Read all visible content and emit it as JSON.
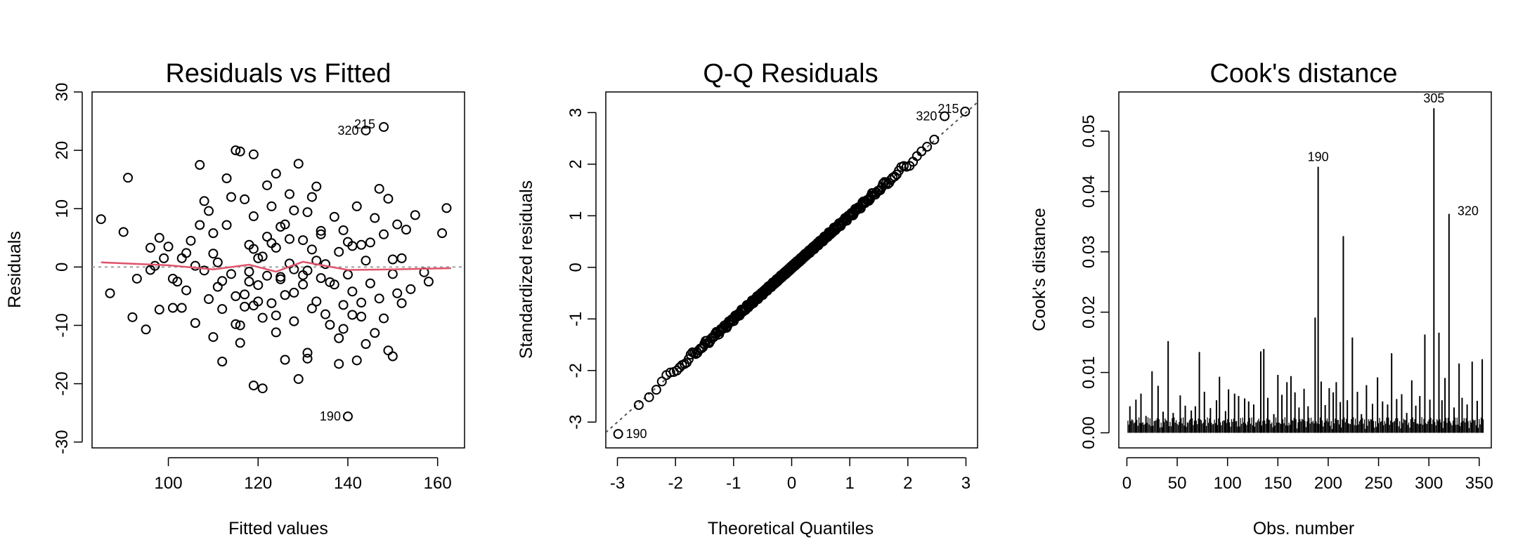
{
  "colors": {
    "loess": "#df536b",
    "reference": "#9e9e9e",
    "ink": "#000000"
  },
  "chart_data": [
    {
      "type": "scatter",
      "title": "Residuals vs Fitted",
      "xlabel": "Fitted values",
      "ylabel": "Residuals",
      "xlim": [
        83,
        166
      ],
      "ylim": [
        -31,
        30
      ],
      "xticks": [
        "100",
        "120",
        "140",
        "160"
      ],
      "yticks": [
        "-30",
        "-20",
        "-10",
        "0",
        "10",
        "20",
        "30"
      ],
      "points": [
        [
          85,
          8.2
        ],
        [
          87,
          -4.5
        ],
        [
          90,
          6
        ],
        [
          91,
          15.3
        ],
        [
          92,
          -8.6
        ],
        [
          93,
          -2
        ],
        [
          95,
          -10.7
        ],
        [
          96,
          3.3
        ],
        [
          96,
          -0.5
        ],
        [
          97,
          0.2
        ],
        [
          98,
          5
        ],
        [
          98,
          -7.3
        ],
        [
          99,
          1.5
        ],
        [
          100,
          3.5
        ],
        [
          101,
          -2
        ],
        [
          101,
          -7
        ],
        [
          102,
          -2.5
        ],
        [
          103,
          1.5
        ],
        [
          103,
          -7
        ],
        [
          104,
          -4
        ],
        [
          105,
          4.5
        ],
        [
          106,
          -9.6
        ],
        [
          107,
          7.2
        ],
        [
          107,
          17.5
        ],
        [
          108,
          11.3
        ],
        [
          108,
          -0.6
        ],
        [
          109,
          -5.5
        ],
        [
          110,
          2.3
        ],
        [
          110,
          -12
        ],
        [
          110,
          5.8
        ],
        [
          111,
          -3.4
        ],
        [
          111,
          0.8
        ],
        [
          112,
          -16.2
        ],
        [
          112,
          -7.2
        ],
        [
          113,
          15.2
        ],
        [
          113,
          7.2
        ],
        [
          114,
          12
        ],
        [
          115,
          20
        ],
        [
          115,
          -5
        ],
        [
          116,
          19.8
        ],
        [
          116,
          -13
        ],
        [
          116,
          -10
        ],
        [
          117,
          11.6
        ],
        [
          117,
          -4.7
        ],
        [
          118,
          3.8
        ],
        [
          118,
          -2.5
        ],
        [
          119,
          19.3
        ],
        [
          119,
          -20.3
        ],
        [
          119,
          -6.6
        ],
        [
          119,
          8.7
        ],
        [
          120,
          1.5
        ],
        [
          120,
          -3.1
        ],
        [
          121,
          -20.8
        ],
        [
          121,
          -8.7
        ],
        [
          122,
          5.2
        ],
        [
          122,
          14
        ],
        [
          122,
          -1.5
        ],
        [
          123,
          -6.2
        ],
        [
          123,
          10.4
        ],
        [
          124,
          16
        ],
        [
          124,
          3.3
        ],
        [
          124,
          -11.2
        ],
        [
          125,
          -1.7
        ],
        [
          126,
          -15.9
        ],
        [
          126,
          7.3
        ],
        [
          126,
          -4.8
        ],
        [
          127,
          4.8
        ],
        [
          127,
          12.5
        ],
        [
          128,
          -9.3
        ],
        [
          128,
          -0.4
        ],
        [
          129,
          -19.2
        ],
        [
          129,
          17.7
        ],
        [
          130,
          4.6
        ],
        [
          130,
          -3
        ],
        [
          131,
          9.4
        ],
        [
          131,
          -14.7
        ],
        [
          131,
          -15.7
        ],
        [
          132,
          12
        ],
        [
          132,
          3
        ],
        [
          133,
          -5.9
        ],
        [
          133,
          13.8
        ],
        [
          134,
          6.2
        ],
        [
          134,
          -1.9
        ],
        [
          135,
          -8.1
        ],
        [
          135,
          0.5
        ],
        [
          136,
          -9.9
        ],
        [
          137,
          8.6
        ],
        [
          137,
          -3
        ],
        [
          138,
          -16.6
        ],
        [
          138,
          -12.2
        ],
        [
          139,
          -6.5
        ],
        [
          139,
          6.3
        ],
        [
          140,
          4.3
        ],
        [
          140,
          -1.3
        ],
        [
          141,
          -8.2
        ],
        [
          141,
          3.6
        ],
        [
          142,
          10.4
        ],
        [
          142,
          -16
        ],
        [
          143,
          -6.1
        ],
        [
          144,
          1.1
        ],
        [
          144,
          -13.2
        ],
        [
          145,
          -2.8
        ],
        [
          146,
          8.4
        ],
        [
          146,
          -11.3
        ],
        [
          147,
          13.4
        ],
        [
          148,
          -8.8
        ],
        [
          149,
          11.7
        ],
        [
          149,
          -14.3
        ],
        [
          150,
          -1.2
        ],
        [
          150,
          -15.3
        ],
        [
          151,
          7.3
        ],
        [
          151,
          -4.5
        ],
        [
          152,
          1.5
        ],
        [
          152,
          -6.2
        ],
        [
          153,
          6.4
        ],
        [
          154,
          -3.8
        ],
        [
          155,
          8.9
        ],
        [
          157,
          -0.9
        ],
        [
          158,
          -2.5
        ],
        [
          161,
          5.8
        ],
        [
          162,
          10.1
        ],
        [
          106,
          0.2
        ],
        [
          112,
          -2.4
        ],
        [
          118,
          -0.8
        ],
        [
          121,
          1.8
        ],
        [
          125,
          -2.1
        ],
        [
          127,
          0.6
        ],
        [
          130,
          -1.4
        ],
        [
          133,
          1.1
        ],
        [
          136,
          -2.6
        ],
        [
          115,
          -9.8
        ],
        [
          117,
          -6.8
        ],
        [
          120,
          -5.9
        ],
        [
          123,
          4.1
        ],
        [
          125,
          6.9
        ],
        [
          128,
          -4.4
        ],
        [
          132,
          -7.1
        ],
        [
          134,
          5.6
        ],
        [
          138,
          2.6
        ],
        [
          141,
          -4.2
        ],
        [
          143,
          3.8
        ],
        [
          145,
          4.2
        ],
        [
          148,
          5.6
        ],
        [
          150,
          1.3
        ],
        [
          104,
          2.4
        ],
        [
          109,
          9.6
        ],
        [
          114,
          -1.2
        ],
        [
          119,
          3.1
        ],
        [
          124,
          -8.3
        ],
        [
          128,
          9.7
        ],
        [
          131,
          -0.6
        ],
        [
          139,
          -10.6
        ],
        [
          143,
          -8.5
        ],
        [
          147,
          -5.4
        ],
        [
          144,
          23.4
        ],
        [
          148,
          24
        ],
        [
          140,
          -25.6
        ]
      ],
      "point_labels": [
        {
          "text": "320",
          "x": 144,
          "y": 23.4
        },
        {
          "text": "215",
          "x": 148,
          "y": 24.0
        },
        {
          "text": "190",
          "x": 140,
          "y": -25.6
        }
      ],
      "smooth": {
        "x": [
          85,
          100,
          110,
          118,
          124,
          130,
          140,
          150,
          163
        ],
        "y": [
          0.8,
          0.3,
          -0.4,
          0.4,
          -0.8,
          0.9,
          -0.5,
          -0.4,
          -0.2
        ]
      }
    },
    {
      "type": "scatter",
      "title": "Q-Q Residuals",
      "xlabel": "Theoretical Quantiles",
      "ylabel": "Standardized residuals",
      "xlim": [
        -3.2,
        3.2
      ],
      "ylim": [
        -3.5,
        3.4
      ],
      "xticks": [
        "-3",
        "-2",
        "-1",
        "0",
        "1",
        "2",
        "3"
      ],
      "yticks": [
        "-3",
        "-2",
        "-1",
        "0",
        "1",
        "2",
        "3"
      ],
      "point_count": 354,
      "reference_line": {
        "slope": 1,
        "intercept": 0
      },
      "point_labels": [
        {
          "text": "320",
          "x": 2.6,
          "y": 2.93
        },
        {
          "text": "215",
          "x": 3.0,
          "y": 3.02
        },
        {
          "text": "190",
          "x": -3.0,
          "y": -3.23
        }
      ]
    },
    {
      "type": "bar",
      "title": "Cook's distance",
      "xlabel": "Obs. number",
      "ylabel": "Cook's distance",
      "xlim": [
        -8,
        362
      ],
      "ylim": [
        -0.0025,
        0.0565
      ],
      "xticks": [
        "0",
        "50",
        "100",
        "150",
        "200",
        "250",
        "300",
        "350"
      ],
      "yticks": [
        "0.00",
        "0.01",
        "0.02",
        "0.03",
        "0.04",
        "0.05"
      ],
      "n": 354,
      "spikes": [
        [
          3,
          0.0044
        ],
        [
          9,
          0.0055
        ],
        [
          14,
          0.0065
        ],
        [
          19,
          0.0028
        ],
        [
          25,
          0.0102
        ],
        [
          31,
          0.0078
        ],
        [
          36,
          0.0035
        ],
        [
          41,
          0.0152
        ],
        [
          46,
          0.0033
        ],
        [
          53,
          0.0062
        ],
        [
          58,
          0.0045
        ],
        [
          64,
          0.0037
        ],
        [
          68,
          0.0044
        ],
        [
          72,
          0.0134
        ],
        [
          77,
          0.0068
        ],
        [
          83,
          0.0041
        ],
        [
          89,
          0.0054
        ],
        [
          92,
          0.0093
        ],
        [
          98,
          0.0036
        ],
        [
          101,
          0.0072
        ],
        [
          107,
          0.0065
        ],
        [
          111,
          0.0061
        ],
        [
          117,
          0.0057
        ],
        [
          121,
          0.0052
        ],
        [
          126,
          0.0047
        ],
        [
          133,
          0.0135
        ],
        [
          136,
          0.0139
        ],
        [
          140,
          0.0058
        ],
        [
          146,
          0.0031
        ],
        [
          150,
          0.0096
        ],
        [
          154,
          0.0063
        ],
        [
          159,
          0.0084
        ],
        [
          163,
          0.0094
        ],
        [
          167,
          0.0067
        ],
        [
          171,
          0.0042
        ],
        [
          176,
          0.0073
        ],
        [
          180,
          0.0044
        ],
        [
          187,
          0.0191
        ],
        [
          190,
          0.0441
        ],
        [
          193,
          0.0085
        ],
        [
          197,
          0.0046
        ],
        [
          201,
          0.0074
        ],
        [
          205,
          0.0067
        ],
        [
          208,
          0.0084
        ],
        [
          212,
          0.0051
        ],
        [
          215,
          0.0326
        ],
        [
          219,
          0.0054
        ],
        [
          224,
          0.0158
        ],
        [
          229,
          0.0068
        ],
        [
          233,
          0.0031
        ],
        [
          238,
          0.0079
        ],
        [
          244,
          0.0048
        ],
        [
          249,
          0.0092
        ],
        [
          254,
          0.0052
        ],
        [
          259,
          0.0047
        ],
        [
          263,
          0.0132
        ],
        [
          268,
          0.0056
        ],
        [
          273,
          0.0064
        ],
        [
          278,
          0.0033
        ],
        [
          283,
          0.0087
        ],
        [
          287,
          0.0045
        ],
        [
          291,
          0.0061
        ],
        [
          296,
          0.0163
        ],
        [
          301,
          0.0055
        ],
        [
          305,
          0.0538
        ],
        [
          310,
          0.0166
        ],
        [
          313,
          0.0054
        ],
        [
          316,
          0.0091
        ],
        [
          320,
          0.0363
        ],
        [
          325,
          0.0042
        ],
        [
          330,
          0.0115
        ],
        [
          333,
          0.0058
        ],
        [
          338,
          0.0047
        ],
        [
          343,
          0.0118
        ],
        [
          348,
          0.0053
        ],
        [
          353,
          0.0122
        ]
      ],
      "point_labels": [
        {
          "text": "305",
          "x": 305,
          "y": 0.0538
        },
        {
          "text": "190",
          "x": 190,
          "y": 0.0441
        },
        {
          "text": "320",
          "x": 320,
          "y": 0.0363
        }
      ]
    }
  ]
}
